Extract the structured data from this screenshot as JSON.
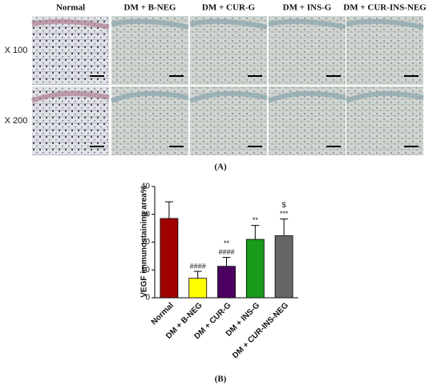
{
  "panel_a": {
    "columns": [
      "Normal",
      "DM + B-NEG",
      "DM + CUR-G",
      "DM + INS-G",
      "DM + CUR-INS-NEG"
    ],
    "rows": [
      "X 100",
      "X 200"
    ],
    "label": "(A)"
  },
  "chart_data": {
    "type": "bar",
    "y_label": "VEGF immunostaining area%",
    "categories": [
      "Normal",
      "DM + B-NEG",
      "DM + CUR-G",
      "DM + INS-G",
      "DM + CUR-INS-NEG"
    ],
    "values": [
      28.5,
      7,
      11.3,
      21,
      22.3
    ],
    "errors": [
      6,
      2.5,
      3.2,
      5,
      6
    ],
    "colors": [
      "#a00000",
      "#ffff00",
      "#4b0060",
      "#1a9a1a",
      "#666666"
    ],
    "annotations": [
      [],
      [
        "####"
      ],
      [
        "**",
        "####"
      ],
      [
        "**"
      ],
      [
        "$",
        "***"
      ]
    ],
    "ylim": [
      0,
      40
    ],
    "yticks": [
      0,
      10,
      20,
      30,
      40
    ]
  },
  "panel_b": {
    "label": "(B)"
  }
}
